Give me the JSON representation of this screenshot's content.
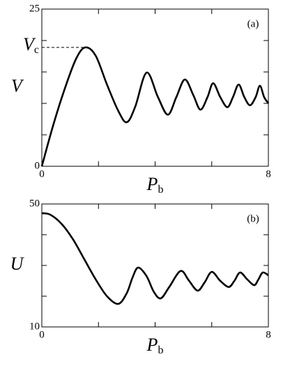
{
  "chart_data": [
    {
      "type": "line",
      "panel_label": "(a)",
      "y_label": "V",
      "x_label": {
        "main": "P",
        "sub": "b"
      },
      "xlim": [
        0,
        8
      ],
      "xticks": [
        0,
        8
      ],
      "xminor_ticks": [
        2,
        4,
        6
      ],
      "ylim": [
        0,
        25
      ],
      "yticks": [
        0,
        25
      ],
      "yminor_ticks": [
        5,
        10,
        15,
        20
      ],
      "annotation": {
        "label": {
          "main": "V",
          "sub": "c"
        },
        "x": 1.53,
        "y": 18.9
      },
      "color": "#000000",
      "x": [
        0,
        0.4,
        0.8,
        1.2,
        1.53,
        1.9,
        2.3,
        2.7,
        3.0,
        3.3,
        3.7,
        4.1,
        4.45,
        4.75,
        5.05,
        5.35,
        5.6,
        5.85,
        6.05,
        6.3,
        6.55,
        6.75,
        6.95,
        7.15,
        7.35,
        7.55,
        7.7,
        7.85,
        8.0
      ],
      "values": [
        0,
        6.5,
        12.2,
        17,
        18.9,
        17.6,
        13,
        8.8,
        7.0,
        9.5,
        14.9,
        11,
        8.2,
        11,
        13.8,
        11.3,
        9.0,
        11,
        13.2,
        11,
        9.4,
        11,
        13.0,
        11,
        9.7,
        11,
        12.8,
        11,
        10
      ]
    },
    {
      "type": "line",
      "panel_label": "(b)",
      "y_label": "U",
      "x_label": {
        "main": "P",
        "sub": "b"
      },
      "xlim": [
        0,
        8
      ],
      "xticks": [
        0,
        8
      ],
      "xminor_ticks": [
        2,
        4,
        6
      ],
      "ylim": [
        10,
        50
      ],
      "yticks": [
        10,
        50
      ],
      "yminor_ticks": [
        20,
        30,
        40
      ],
      "color": "#000000",
      "x": [
        0,
        0.3,
        0.7,
        1.1,
        1.5,
        1.9,
        2.3,
        2.7,
        3.0,
        3.2,
        3.4,
        3.7,
        3.95,
        4.2,
        4.5,
        4.9,
        5.2,
        5.5,
        5.75,
        6.0,
        6.3,
        6.6,
        6.8,
        7.0,
        7.25,
        7.5,
        7.65,
        7.8,
        8.0
      ],
      "values": [
        47,
        46.5,
        43.5,
        38.5,
        32,
        25.5,
        20,
        17.5,
        21,
        26,
        29.3,
        26.5,
        21.5,
        19.3,
        23,
        28.2,
        25,
        21.8,
        24.5,
        27.9,
        25,
        23,
        25,
        27.7,
        25.5,
        23.6,
        25.5,
        27.7,
        26.8
      ]
    }
  ]
}
